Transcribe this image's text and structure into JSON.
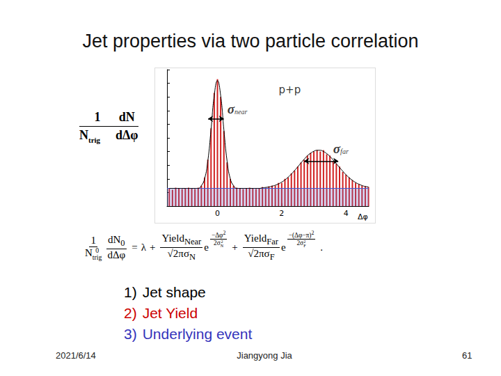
{
  "header": {
    "title": "Jet properties via two particle correlation"
  },
  "chart_data": {
    "type": "bar",
    "ylabel": {
      "numerator": [
        "1",
        "dN"
      ],
      "denominator": [
        {
          "text": "N",
          "sub": "trig"
        },
        {
          "text": "dΔφ"
        }
      ]
    },
    "xlabel": "Δφ",
    "x": [
      -1.5,
      -1.4,
      -1.3,
      -1.2,
      -1.1,
      -1.0,
      -0.9,
      -0.8,
      -0.7,
      -0.6,
      -0.5,
      -0.4,
      -0.3,
      -0.2,
      -0.1,
      0,
      0.1,
      0.2,
      0.3,
      0.4,
      0.5,
      0.6,
      0.7,
      0.8,
      0.9,
      1.0,
      1.1,
      1.2,
      1.3,
      1.4,
      1.5,
      1.6,
      1.7,
      1.8,
      1.9,
      2.0,
      2.1,
      2.2,
      2.3,
      2.4,
      2.5,
      2.6,
      2.7,
      2.8,
      2.9,
      3.0,
      3.1,
      3.2,
      3.3,
      3.4,
      3.5,
      3.6,
      3.7,
      3.8,
      3.9,
      4.0,
      4.1,
      4.2,
      4.3,
      4.4,
      4.5,
      4.6,
      4.7
    ],
    "values": [
      0.13,
      0.12,
      0.135,
      0.13,
      0.125,
      0.13,
      0.135,
      0.13,
      0.125,
      0.135,
      0.15,
      0.21,
      0.34,
      0.57,
      0.83,
      0.93,
      0.8,
      0.55,
      0.32,
      0.2,
      0.15,
      0.135,
      0.13,
      0.125,
      0.13,
      0.135,
      0.13,
      0.125,
      0.13,
      0.14,
      0.135,
      0.145,
      0.15,
      0.15,
      0.17,
      0.17,
      0.2,
      0.21,
      0.24,
      0.26,
      0.29,
      0.32,
      0.34,
      0.37,
      0.39,
      0.4,
      0.41,
      0.4,
      0.41,
      0.38,
      0.37,
      0.33,
      0.31,
      0.29,
      0.25,
      0.23,
      0.21,
      0.19,
      0.17,
      0.16,
      0.15,
      0.145,
      0.14
    ],
    "fit": [
      0.13,
      0.13,
      0.13,
      0.13,
      0.13,
      0.13,
      0.13,
      0.13,
      0.13,
      0.13,
      0.15,
      0.2,
      0.33,
      0.56,
      0.81,
      0.92,
      0.81,
      0.56,
      0.33,
      0.2,
      0.15,
      0.13,
      0.13,
      0.13,
      0.13,
      0.13,
      0.13,
      0.13,
      0.13,
      0.134,
      0.137,
      0.14,
      0.146,
      0.153,
      0.163,
      0.176,
      0.192,
      0.212,
      0.235,
      0.261,
      0.288,
      0.317,
      0.344,
      0.369,
      0.388,
      0.402,
      0.409,
      0.409,
      0.4,
      0.385,
      0.364,
      0.339,
      0.311,
      0.283,
      0.256,
      0.23,
      0.208,
      0.189,
      0.173,
      0.161,
      0.151,
      0.144,
      0.14
    ],
    "underlying_event": 0.13,
    "xlim": [
      -1.57,
      4.71
    ],
    "xticks": [
      0,
      2,
      4
    ],
    "ylim": [
      0,
      1
    ],
    "yticks": [
      0,
      0.1,
      0.2,
      0.3,
      0.4,
      0.5,
      0.6,
      0.7,
      0.8,
      0.9,
      1
    ],
    "tick_labels": "x",
    "grid": false,
    "color": "#d02020",
    "annotations": [
      {
        "text": "p+p",
        "x": 2.25,
        "y": 0.85
      },
      {
        "text": "σ",
        "sub": "near",
        "x": 0.62,
        "y": 0.72
      },
      {
        "text": "σ",
        "sub": "far",
        "x": 3.84,
        "y": 0.43
      }
    ],
    "sigma_widths": [
      {
        "x": [
          -0.29,
          0.2
        ],
        "y": 0.64
      },
      {
        "x": [
          2.7,
          3.76
        ],
        "y": 0.33
      }
    ]
  },
  "formula": {
    "lhs": [
      {
        "num": [
          {
            "t": "1"
          }
        ],
        "den": [
          {
            "t": "N"
          },
          {
            "sup": "0",
            "sub": "trig"
          }
        ]
      },
      {
        "num": [
          {
            "t": "dN"
          },
          {
            "sub": "0"
          }
        ],
        "den": [
          {
            "t": "dΔφ"
          }
        ]
      }
    ],
    "eq": "=",
    "constant": "λ",
    "plus": "+",
    "base": "e",
    "end": ".",
    "terms": [
      {
        "num": [
          {
            "t": "Yield"
          },
          {
            "sub": "Near"
          }
        ],
        "den": [
          {
            "t": "√"
          },
          {
            "root": "2π"
          },
          {
            "t": "σ"
          },
          {
            "sub": "N"
          }
        ],
        "exp_num": [
          {
            "t": "−Δφ"
          },
          {
            "sup": "2"
          }
        ],
        "exp_den": [
          {
            "t": "2σ"
          },
          {
            "sup": "2",
            "sub": "N"
          }
        ]
      },
      {
        "num": [
          {
            "t": "Yield"
          },
          {
            "sub": "Far"
          }
        ],
        "den": [
          {
            "t": "√"
          },
          {
            "root": "2π"
          },
          {
            "t": "σ"
          },
          {
            "sub": "F"
          }
        ],
        "exp_num": [
          {
            "t": "−(Δφ−π)"
          },
          {
            "sup": "2"
          }
        ],
        "exp_den": [
          {
            "t": "2σ"
          },
          {
            "sup": "2",
            "sub": "F"
          }
        ]
      }
    ]
  },
  "list": [
    {
      "number": "1)",
      "text": "Jet shape",
      "color": "#000000"
    },
    {
      "number": "2)",
      "text": "Jet Yield",
      "color": "#cc0000"
    },
    {
      "number": "3)",
      "text": "Underlying event",
      "color": "#3333bb"
    }
  ],
  "footer": {
    "date": "2021/6/14",
    "author": "Jiangyong Jia",
    "page": "61"
  }
}
